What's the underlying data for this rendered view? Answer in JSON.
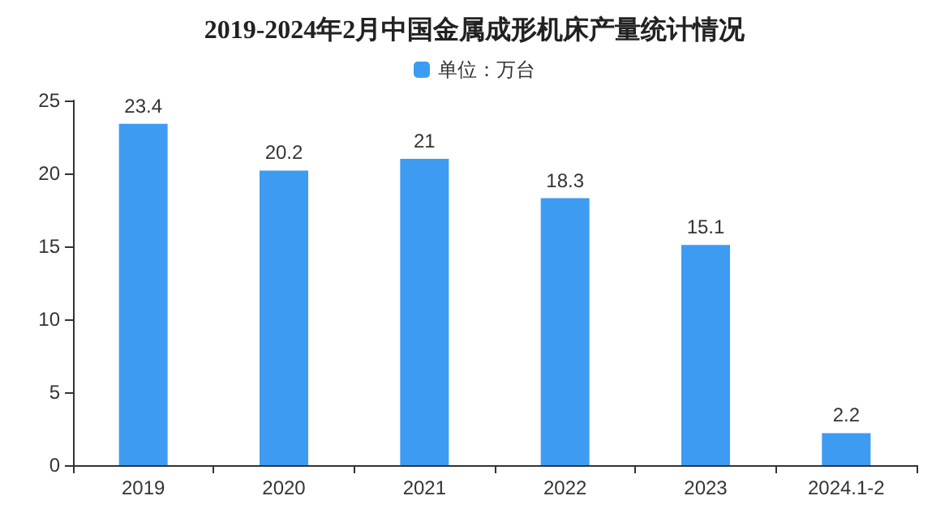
{
  "chart_data": {
    "type": "bar",
    "title": "2019-2024年2月中国金属成形机床产量统计情况",
    "categories": [
      "2019",
      "2020",
      "2021",
      "2022",
      "2023",
      "2024.1-2"
    ],
    "series": [
      {
        "name": "单位：万台",
        "color": "#3d9cf2",
        "values": [
          23.4,
          20.2,
          21,
          18.3,
          15.1,
          2.2
        ]
      }
    ],
    "ylim": [
      0,
      25
    ],
    "yticks": [
      0,
      5,
      10,
      15,
      20,
      25
    ],
    "grid": false,
    "legend": "top",
    "data_labels": true
  }
}
